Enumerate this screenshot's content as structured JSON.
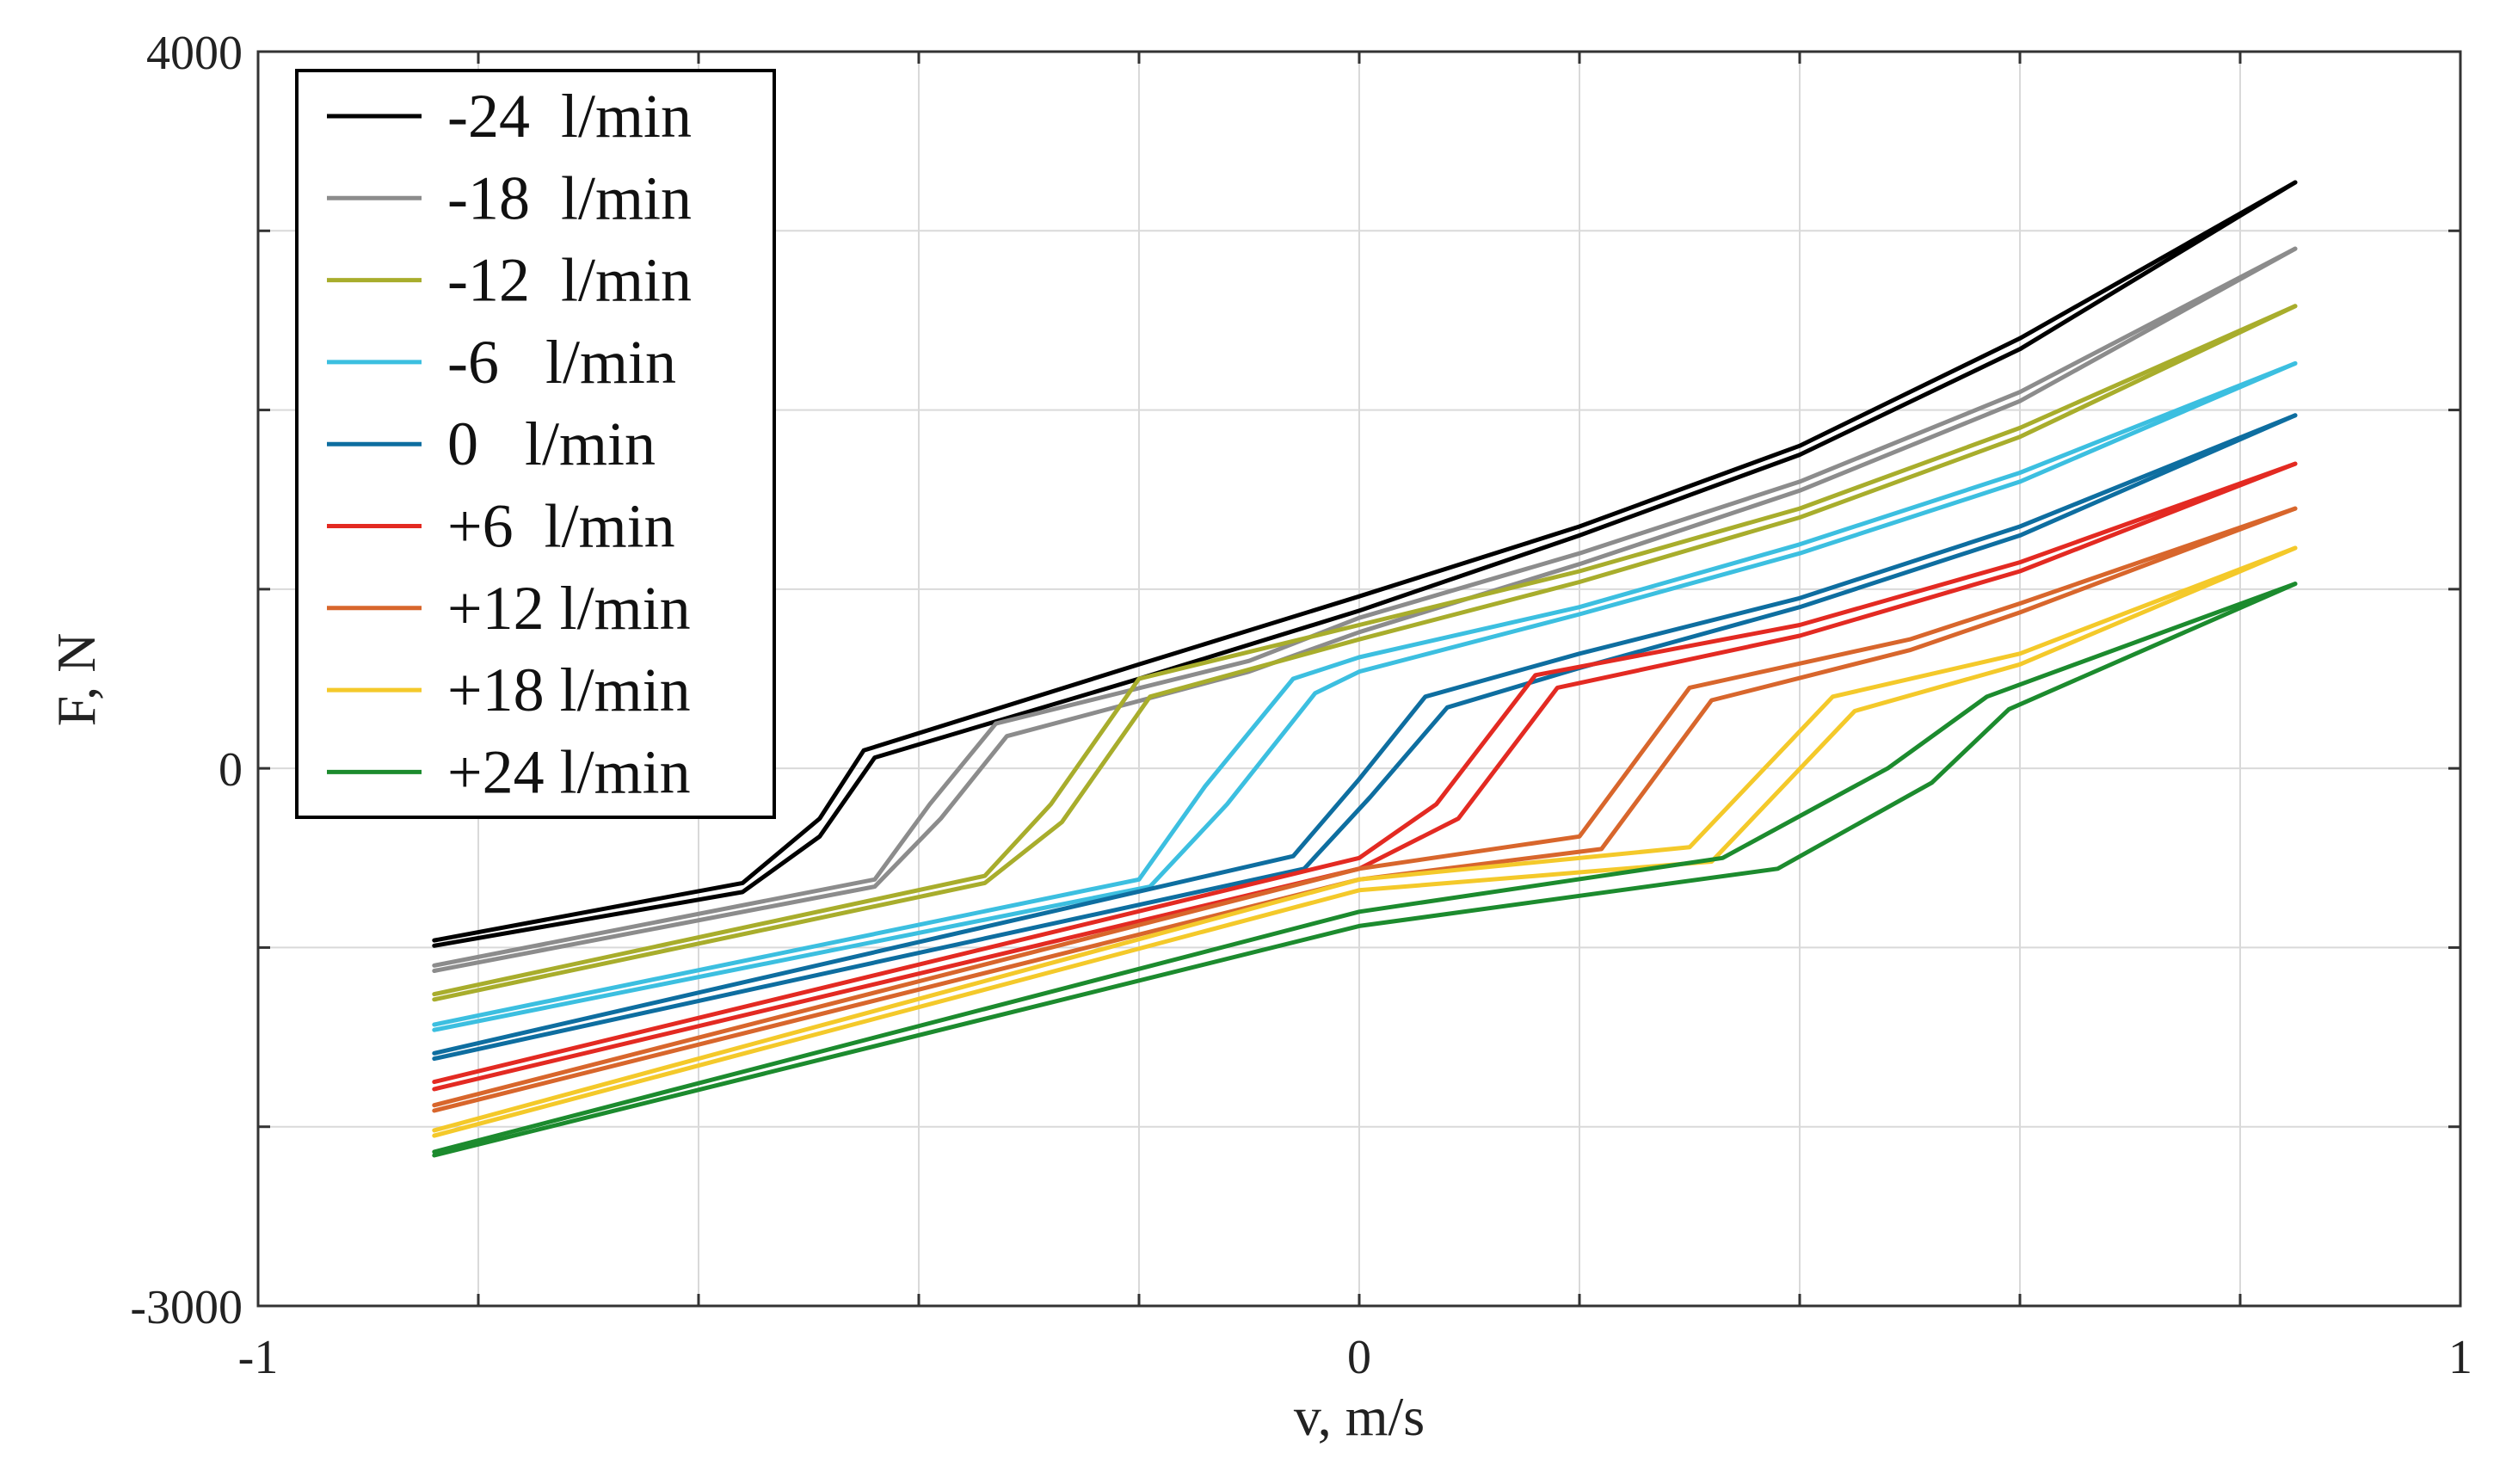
{
  "chart_data": {
    "type": "line",
    "title": "",
    "xlabel": "v, m/s",
    "ylabel": "F, N",
    "xlim": [
      -1,
      1
    ],
    "ylim": [
      -3000,
      4000
    ],
    "x_tick_labels": [
      {
        "value": -1,
        "label": "-1"
      },
      {
        "value": 0,
        "label": "0"
      },
      {
        "value": 1,
        "label": "1"
      }
    ],
    "y_tick_labels": [
      {
        "value": 4000,
        "label": "4000"
      },
      {
        "value": 0,
        "label": "0"
      },
      {
        "value": -3000,
        "label": "-3000"
      }
    ],
    "x_gridlines": [
      -0.8,
      -0.6,
      -0.4,
      -0.2,
      0,
      0.2,
      0.4,
      0.6,
      0.8
    ],
    "y_gridlines": [
      3000,
      2000,
      1000,
      0,
      -1000,
      -2000
    ],
    "grid": true,
    "legend_position": "top-left",
    "series": [
      {
        "name": "-24  l/min",
        "color": "#000000",
        "upper": [
          [
            -0.84,
            -960
          ],
          [
            -0.56,
            -640
          ],
          [
            -0.49,
            -280
          ],
          [
            -0.45,
            100
          ],
          [
            -0.2,
            580
          ],
          [
            0,
            960
          ],
          [
            0.2,
            1350
          ],
          [
            0.4,
            1800
          ],
          [
            0.6,
            2400
          ],
          [
            0.85,
            3270
          ]
        ],
        "lower": [
          [
            -0.84,
            -990
          ],
          [
            -0.56,
            -690
          ],
          [
            -0.49,
            -380
          ],
          [
            -0.44,
            60
          ],
          [
            -0.2,
            500
          ],
          [
            0,
            880
          ],
          [
            0.2,
            1300
          ],
          [
            0.4,
            1750
          ],
          [
            0.6,
            2340
          ],
          [
            0.85,
            3270
          ]
        ]
      },
      {
        "name": "-18  l/min",
        "color": "#8c8c8c",
        "upper": [
          [
            -0.84,
            -1100
          ],
          [
            -0.44,
            -620
          ],
          [
            -0.39,
            -200
          ],
          [
            -0.33,
            250
          ],
          [
            -0.1,
            600
          ],
          [
            0,
            840
          ],
          [
            0.2,
            1200
          ],
          [
            0.4,
            1600
          ],
          [
            0.6,
            2100
          ],
          [
            0.85,
            2900
          ]
        ],
        "lower": [
          [
            -0.84,
            -1130
          ],
          [
            -0.44,
            -660
          ],
          [
            -0.38,
            -280
          ],
          [
            -0.32,
            180
          ],
          [
            -0.1,
            540
          ],
          [
            0,
            760
          ],
          [
            0.2,
            1140
          ],
          [
            0.4,
            1550
          ],
          [
            0.6,
            2050
          ],
          [
            0.85,
            2900
          ]
        ]
      },
      {
        "name": "-12  l/min",
        "color": "#a8ad2c",
        "upper": [
          [
            -0.84,
            -1260
          ],
          [
            -0.34,
            -600
          ],
          [
            -0.28,
            -200
          ],
          [
            -0.2,
            500
          ],
          [
            0,
            800
          ],
          [
            0.2,
            1100
          ],
          [
            0.4,
            1450
          ],
          [
            0.6,
            1900
          ],
          [
            0.85,
            2580
          ]
        ],
        "lower": [
          [
            -0.84,
            -1290
          ],
          [
            -0.34,
            -640
          ],
          [
            -0.27,
            -300
          ],
          [
            -0.19,
            400
          ],
          [
            0,
            720
          ],
          [
            0.2,
            1040
          ],
          [
            0.4,
            1400
          ],
          [
            0.6,
            1850
          ],
          [
            0.85,
            2580
          ]
        ]
      },
      {
        "name": "-6   l/min",
        "color": "#3cbfe0",
        "upper": [
          [
            -0.84,
            -1430
          ],
          [
            -0.2,
            -620
          ],
          [
            -0.14,
            -100
          ],
          [
            -0.06,
            500
          ],
          [
            0,
            620
          ],
          [
            0.2,
            900
          ],
          [
            0.4,
            1250
          ],
          [
            0.6,
            1650
          ],
          [
            0.85,
            2260
          ]
        ],
        "lower": [
          [
            -0.84,
            -1460
          ],
          [
            -0.19,
            -660
          ],
          [
            -0.12,
            -200
          ],
          [
            -0.04,
            420
          ],
          [
            0,
            540
          ],
          [
            0.2,
            860
          ],
          [
            0.4,
            1200
          ],
          [
            0.6,
            1600
          ],
          [
            0.85,
            2260
          ]
        ]
      },
      {
        "name": "0   l/min",
        "color": "#0e6ea0",
        "upper": [
          [
            -0.84,
            -1590
          ],
          [
            -0.06,
            -490
          ],
          [
            0,
            -60
          ],
          [
            0.06,
            400
          ],
          [
            0.2,
            640
          ],
          [
            0.4,
            950
          ],
          [
            0.6,
            1350
          ],
          [
            0.85,
            1970
          ]
        ],
        "lower": [
          [
            -0.84,
            -1620
          ],
          [
            -0.05,
            -560
          ],
          [
            0.01,
            -160
          ],
          [
            0.08,
            340
          ],
          [
            0.2,
            560
          ],
          [
            0.4,
            900
          ],
          [
            0.6,
            1300
          ],
          [
            0.85,
            1970
          ]
        ]
      },
      {
        "name": "+6  l/min",
        "color": "#e32a22",
        "upper": [
          [
            -0.84,
            -1750
          ],
          [
            0,
            -500
          ],
          [
            0.07,
            -200
          ],
          [
            0.16,
            520
          ],
          [
            0.4,
            800
          ],
          [
            0.6,
            1150
          ],
          [
            0.85,
            1700
          ]
        ],
        "lower": [
          [
            -0.84,
            -1790
          ],
          [
            0,
            -560
          ],
          [
            0.09,
            -280
          ],
          [
            0.18,
            450
          ],
          [
            0.4,
            740
          ],
          [
            0.6,
            1100
          ],
          [
            0.85,
            1700
          ]
        ]
      },
      {
        "name": "+12 l/min",
        "color": "#d8662c",
        "upper": [
          [
            -0.84,
            -1880
          ],
          [
            0,
            -560
          ],
          [
            0.2,
            -380
          ],
          [
            0.3,
            450
          ],
          [
            0.5,
            720
          ],
          [
            0.6,
            920
          ],
          [
            0.85,
            1450
          ]
        ],
        "lower": [
          [
            -0.84,
            -1910
          ],
          [
            0,
            -620
          ],
          [
            0.22,
            -450
          ],
          [
            0.32,
            380
          ],
          [
            0.5,
            660
          ],
          [
            0.6,
            870
          ],
          [
            0.85,
            1450
          ]
        ]
      },
      {
        "name": "+18 l/min",
        "color": "#f4c92a",
        "upper": [
          [
            -0.84,
            -2020
          ],
          [
            0,
            -620
          ],
          [
            0.3,
            -440
          ],
          [
            0.43,
            400
          ],
          [
            0.6,
            640
          ],
          [
            0.85,
            1230
          ]
        ],
        "lower": [
          [
            -0.84,
            -2050
          ],
          [
            0,
            -680
          ],
          [
            0.32,
            -520
          ],
          [
            0.45,
            320
          ],
          [
            0.6,
            580
          ],
          [
            0.85,
            1230
          ]
        ]
      },
      {
        "name": "+24 l/min",
        "color": "#1c8b2e",
        "upper": [
          [
            -0.84,
            -2140
          ],
          [
            0,
            -800
          ],
          [
            0.33,
            -500
          ],
          [
            0.48,
            0
          ],
          [
            0.57,
            400
          ],
          [
            0.85,
            1030
          ]
        ],
        "lower": [
          [
            -0.84,
            -2160
          ],
          [
            0,
            -880
          ],
          [
            0.38,
            -560
          ],
          [
            0.52,
            -80
          ],
          [
            0.59,
            330
          ],
          [
            0.85,
            1030
          ]
        ]
      }
    ]
  }
}
